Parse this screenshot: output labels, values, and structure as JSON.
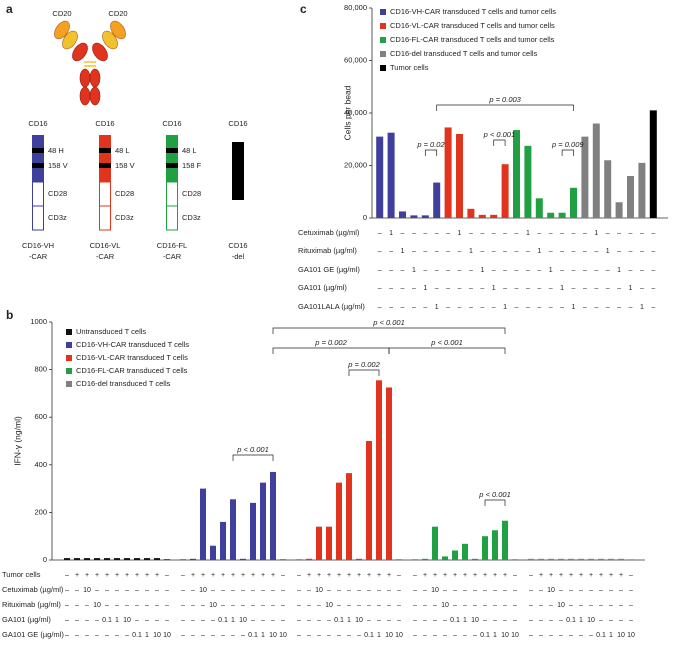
{
  "panel_labels": [
    "a",
    "c",
    "b"
  ],
  "diagram": {
    "antigens": [
      "CD20",
      "CD20"
    ],
    "constructs": [
      {
        "header": "CD16",
        "color": "#3f3f9e",
        "domains": [
          "48 H",
          "158 V",
          "CD28",
          "CD3z"
        ],
        "name": [
          "CD16-VH",
          "-CAR"
        ]
      },
      {
        "header": "CD16",
        "color": "#e0341e",
        "domains": [
          "48 L",
          "158 V",
          "CD28",
          "CD3z"
        ],
        "name": [
          "CD16-VL",
          "-CAR"
        ]
      },
      {
        "header": "CD16",
        "color": "#21a043",
        "domains": [
          "48 L",
          "158 F",
          "CD28",
          "CD3z"
        ],
        "name": [
          "CD16-FL",
          "-CAR"
        ]
      },
      {
        "header": "CD16",
        "color": "#000000",
        "domains": [],
        "name": [
          "CD16",
          "-del"
        ]
      }
    ]
  },
  "chart_data": [
    {
      "type": "bar",
      "y_label": "Cells per bead",
      "ylim": [
        0,
        80000
      ],
      "yticks": [
        0,
        {
          "value": 20000,
          "label": "20,000"
        },
        {
          "value": 40000,
          "label": "40,000"
        },
        {
          "value": 60000,
          "label": "60,000"
        },
        {
          "value": 80000,
          "label": "80,000"
        }
      ],
      "legend": "upper left",
      "series": [
        {
          "name": "CD16-VH-CAR transduced T cells and tumor cells",
          "color": "#3f3f9e",
          "values": [
            31000,
            32500,
            2500,
            1000,
            1000,
            13500
          ]
        },
        {
          "name": "CD16-VL-CAR transduced T cells and tumor cells",
          "color": "#e0341e",
          "values": [
            34500,
            32000,
            3500,
            1200,
            1200,
            20500
          ]
        },
        {
          "name": "CD16-FL-CAR transduced T cells and tumor cells",
          "color": "#21a043",
          "values": [
            33500,
            27500,
            7500,
            2000,
            2000,
            11500
          ]
        },
        {
          "name": "CD16-del transduced T cells and tumor cells",
          "color": "#808080",
          "values": [
            31000,
            36000,
            22000,
            6000,
            16000,
            21000
          ]
        },
        {
          "name": "Tumor cells",
          "color": "#000000",
          "values": [
            41000
          ]
        }
      ],
      "rows": [
        {
          "label": "Cetuximab (µg/ml)",
          "values": [
            "–",
            "1",
            "–",
            "–",
            "–",
            "–"
          ]
        },
        {
          "label": "Rituximab (µg/ml)",
          "values": [
            "–",
            "–",
            "1",
            "–",
            "–",
            "–"
          ]
        },
        {
          "label": "GA101 GE (µg/ml)",
          "values": [
            "–",
            "–",
            "–",
            "1",
            "–",
            "–"
          ]
        },
        {
          "label": "GA101 (µg/ml)",
          "values": [
            "–",
            "–",
            "–",
            "–",
            "1",
            "–"
          ]
        },
        {
          "label": "GA101LALA (µg/ml)",
          "values": [
            "–",
            "–",
            "–",
            "–",
            "–",
            "1"
          ]
        }
      ],
      "annotations": [
        "p = 0.02",
        "p < 0.001",
        "p = 0.009",
        "p = 0.003"
      ]
    },
    {
      "type": "bar",
      "y_label": "IFN-γ (ng/ml)",
      "ylim": [
        0,
        1000
      ],
      "yticks": [
        0,
        200,
        400,
        600,
        800,
        1000
      ],
      "legend": "upper left",
      "series": [
        {
          "name": "Untransduced T cells",
          "color": "#111111",
          "values": [
            8,
            8,
            8,
            8,
            8,
            8,
            8,
            8,
            8,
            8,
            3
          ]
        },
        {
          "name": "CD16-VH-CAR transduced T cells",
          "color": "#3f3f9e",
          "values": [
            3,
            5,
            300,
            60,
            160,
            255,
            5,
            240,
            325,
            370,
            3
          ]
        },
        {
          "name": "CD16-VL-CAR transduced T cells",
          "color": "#e0341e",
          "values": [
            3,
            5,
            140,
            140,
            325,
            365,
            5,
            500,
            755,
            725,
            3
          ]
        },
        {
          "name": "CD16-FL-CAR transduced T cells",
          "color": "#21a043",
          "values": [
            3,
            5,
            140,
            15,
            40,
            68,
            5,
            100,
            125,
            165,
            3
          ]
        },
        {
          "name": "CD16-del transduced T cells",
          "color": "#808080",
          "values": [
            5,
            5,
            5,
            5,
            5,
            5,
            5,
            5,
            5,
            5,
            3
          ]
        }
      ],
      "rows": [
        {
          "label": "Tumor cells",
          "values": [
            "–",
            "+",
            "+",
            "+",
            "+",
            "+",
            "+",
            "+",
            "+",
            "+",
            "–"
          ]
        },
        {
          "label": "Cetuximab (µg/ml)",
          "values": [
            "–",
            "–",
            "10",
            "–",
            "–",
            "–",
            "–",
            "–",
            "–",
            "–",
            "–"
          ]
        },
        {
          "label": "Rituximab (µg/ml)",
          "values": [
            "–",
            "–",
            "–",
            "10",
            "–",
            "–",
            "–",
            "–",
            "–",
            "–",
            "–"
          ]
        },
        {
          "label": "GA101 (µg/ml)",
          "values": [
            "–",
            "–",
            "–",
            "–",
            "0.1",
            "1",
            "10",
            "–",
            "–",
            "–",
            "–"
          ]
        },
        {
          "label": "GA101 GE (µg/ml)",
          "values": [
            "–",
            "–",
            "–",
            "–",
            "–",
            "–",
            "–",
            "0.1",
            "1",
            "10",
            "10"
          ]
        }
      ],
      "annotations": [
        "p < 0.001",
        "p = 0.002",
        "p < 0.001",
        "p = 0.002",
        "p < 0.001",
        "p < 0.001"
      ]
    }
  ]
}
